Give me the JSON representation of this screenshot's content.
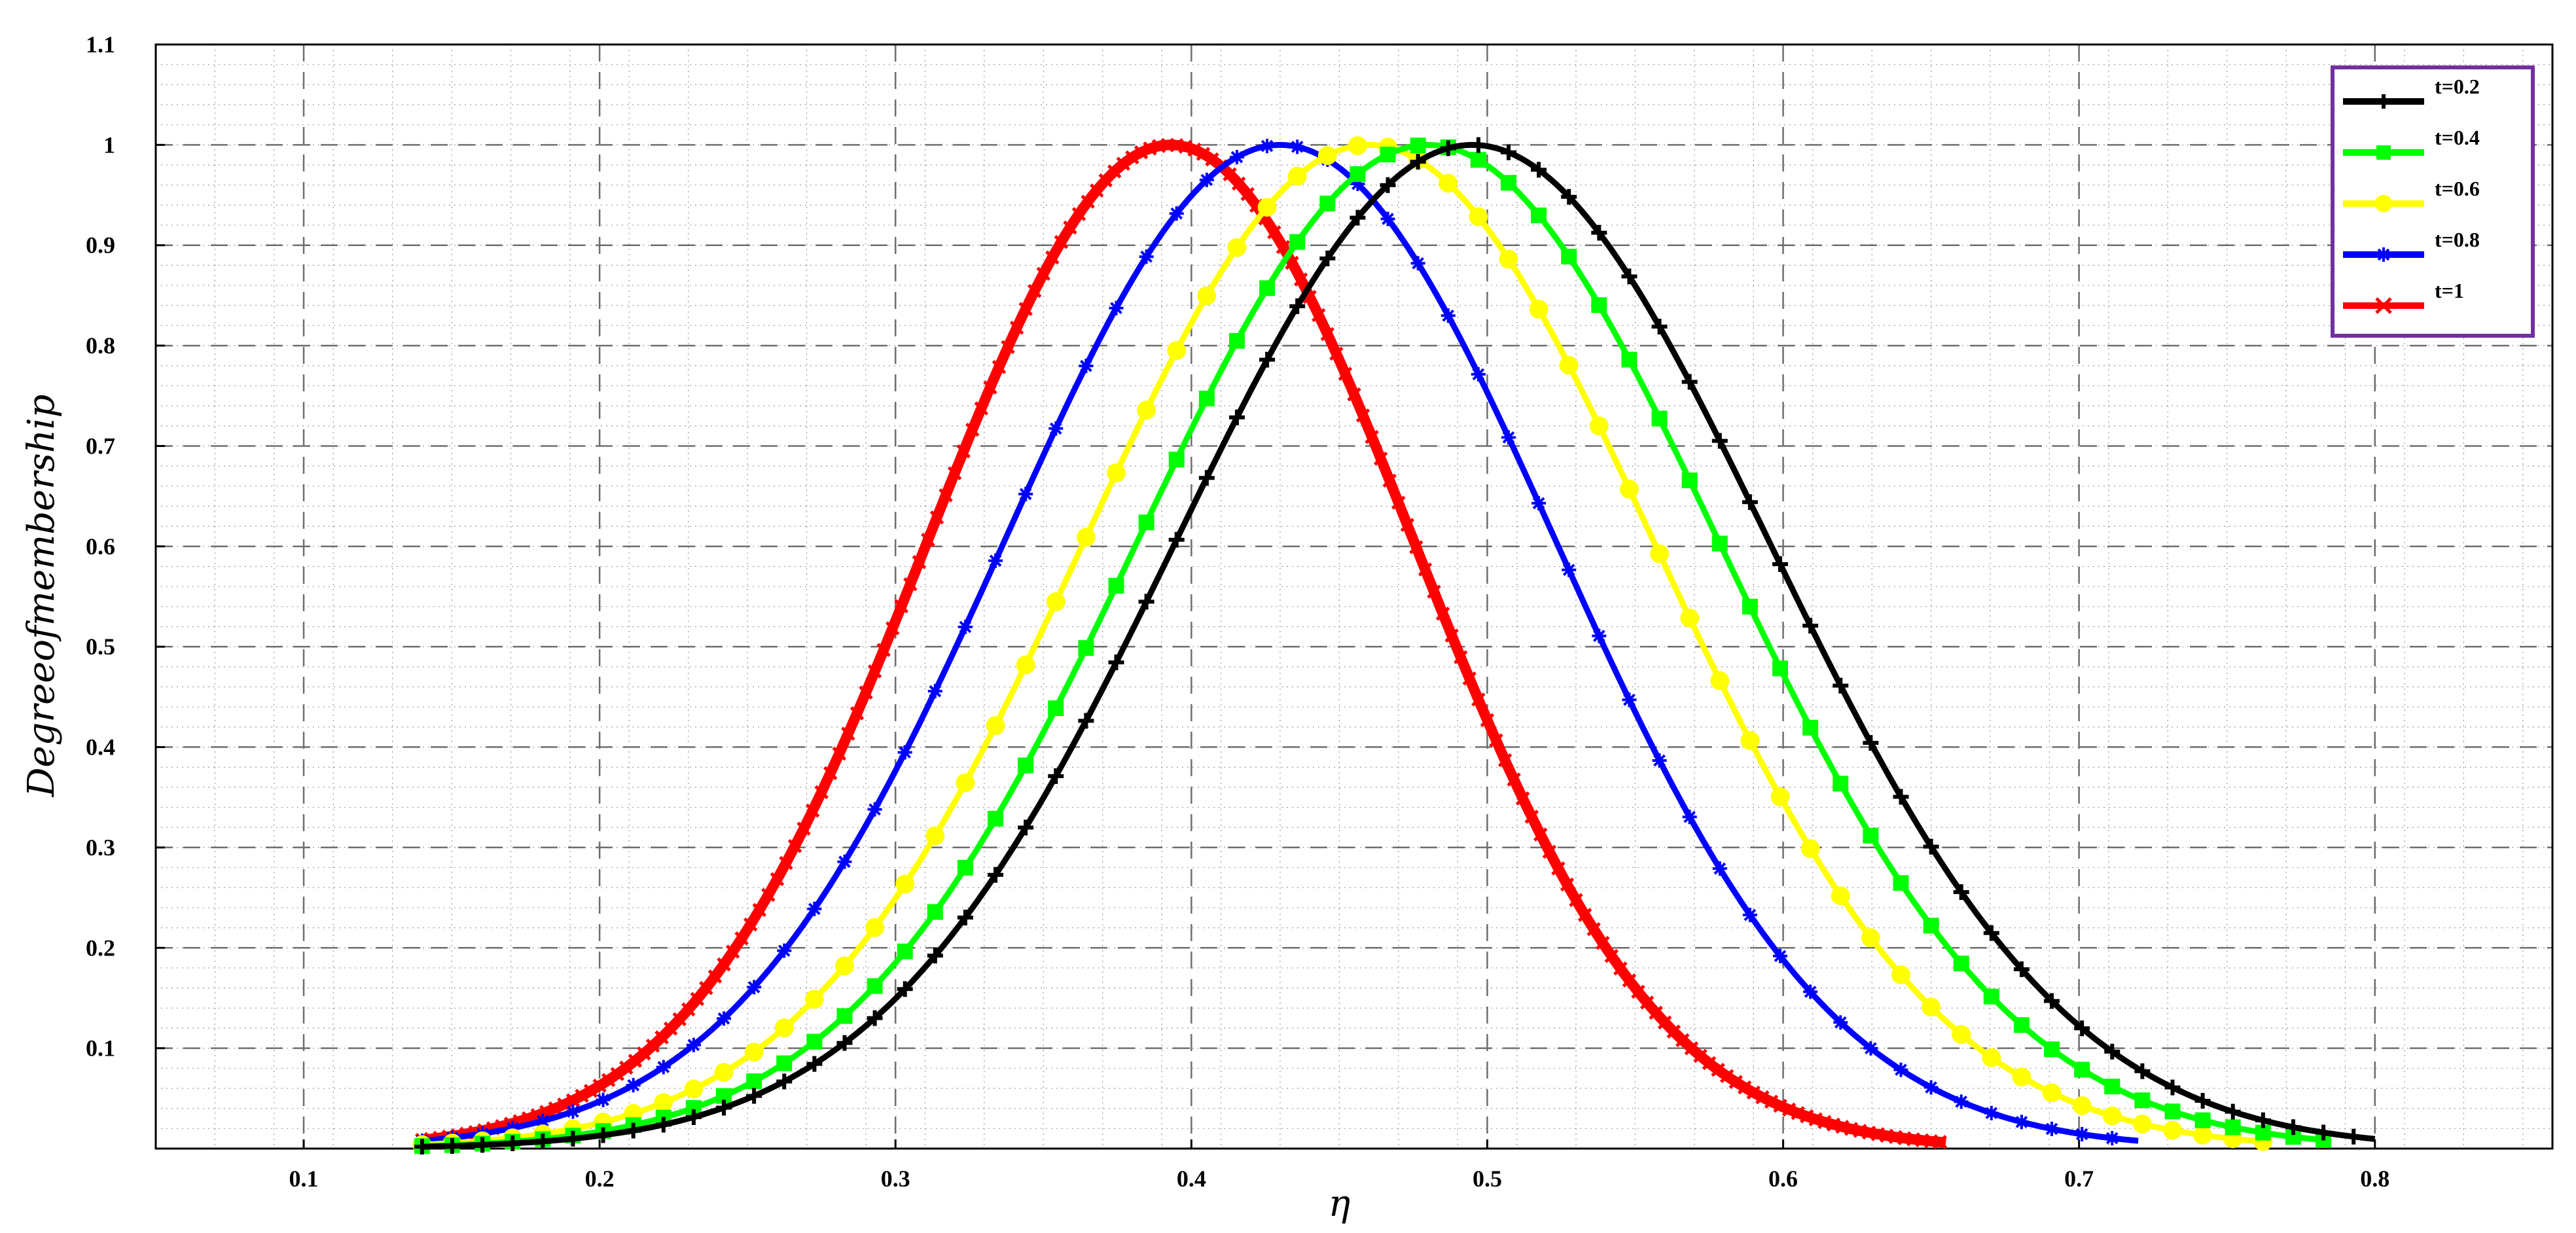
{
  "chart_data": {
    "type": "line",
    "title": "",
    "xlabel": "η",
    "ylabel": "Degreeofmembership",
    "xlim": [
      0.05,
      0.86
    ],
    "ylim": [
      0,
      1.1
    ],
    "xticks": [
      0.1,
      0.2,
      0.3,
      0.4,
      0.5,
      0.6,
      0.7,
      0.8
    ],
    "yticks": [
      0.1,
      0.2,
      0.3,
      0.4,
      0.5,
      0.6,
      0.7,
      0.8,
      0.9,
      1,
      1.1
    ],
    "x_tick_labels": [
      "0.1",
      "0.2",
      "0.3",
      "0.4",
      "0.5",
      "0.6",
      "0.7",
      "0.8"
    ],
    "y_tick_labels": [
      "0.1",
      "0.2",
      "0.3",
      "0.4",
      "0.5",
      "0.6",
      "0.7",
      "0.8",
      "0.9",
      "1",
      "1.1"
    ],
    "grid": true,
    "legend_position": "top-right",
    "series": [
      {
        "name": "t=0.2",
        "color": "#000000",
        "marker": "plus",
        "peak_x": 0.495,
        "sigma": 0.1,
        "x_range": [
          0.14,
          0.8
        ],
        "points": [
          [
            0.2,
            0.01
          ],
          [
            0.3,
            0.13
          ],
          [
            0.35,
            0.3
          ],
          [
            0.4,
            0.62
          ],
          [
            0.45,
            0.9
          ],
          [
            0.495,
            1.0
          ],
          [
            0.55,
            0.87
          ],
          [
            0.6,
            0.6
          ],
          [
            0.65,
            0.34
          ],
          [
            0.7,
            0.12
          ],
          [
            0.8,
            0.01
          ]
        ]
      },
      {
        "name": "t=0.4",
        "color": "#00ff00",
        "marker": "square",
        "peak_x": 0.48,
        "sigma": 0.098,
        "x_range": [
          0.14,
          0.785
        ],
        "points": [
          [
            0.2,
            0.02
          ],
          [
            0.3,
            0.16
          ],
          [
            0.35,
            0.36
          ],
          [
            0.4,
            0.7
          ],
          [
            0.45,
            0.93
          ],
          [
            0.48,
            1.0
          ],
          [
            0.55,
            0.8
          ],
          [
            0.6,
            0.5
          ],
          [
            0.65,
            0.25
          ],
          [
            0.7,
            0.1
          ],
          [
            0.785,
            0.01
          ]
        ]
      },
      {
        "name": "t=0.6",
        "color": "#ffff00",
        "marker": "circle",
        "peak_x": 0.46,
        "sigma": 0.096,
        "x_range": [
          0.14,
          0.765
        ],
        "points": [
          [
            0.2,
            0.02
          ],
          [
            0.3,
            0.2
          ],
          [
            0.35,
            0.45
          ],
          [
            0.4,
            0.78
          ],
          [
            0.46,
            1.0
          ],
          [
            0.5,
            0.9
          ],
          [
            0.55,
            0.63
          ],
          [
            0.6,
            0.35
          ],
          [
            0.65,
            0.16
          ],
          [
            0.7,
            0.06
          ],
          [
            0.765,
            0.01
          ]
        ]
      },
      {
        "name": "t=0.8",
        "color": "#0000ff",
        "marker": "star",
        "peak_x": 0.43,
        "sigma": 0.093,
        "x_range": [
          0.14,
          0.72
        ],
        "points": [
          [
            0.2,
            0.05
          ],
          [
            0.25,
            0.13
          ],
          [
            0.3,
            0.34
          ],
          [
            0.35,
            0.66
          ],
          [
            0.43,
            1.0
          ],
          [
            0.5,
            0.71
          ],
          [
            0.55,
            0.43
          ],
          [
            0.6,
            0.2
          ],
          [
            0.65,
            0.07
          ],
          [
            0.72,
            0.01
          ]
        ]
      },
      {
        "name": "t=1",
        "color": "#ff0000",
        "marker": "x",
        "peak_x": 0.393,
        "sigma": 0.082,
        "x_range": [
          0.14,
          0.655
        ],
        "points": [
          [
            0.14,
            0.0
          ],
          [
            0.2,
            0.04
          ],
          [
            0.25,
            0.18
          ],
          [
            0.3,
            0.5
          ],
          [
            0.35,
            0.88
          ],
          [
            0.393,
            1.0
          ],
          [
            0.45,
            0.8
          ],
          [
            0.5,
            0.36
          ],
          [
            0.55,
            0.12
          ],
          [
            0.6,
            0.03
          ],
          [
            0.655,
            0.0
          ]
        ]
      }
    ]
  }
}
